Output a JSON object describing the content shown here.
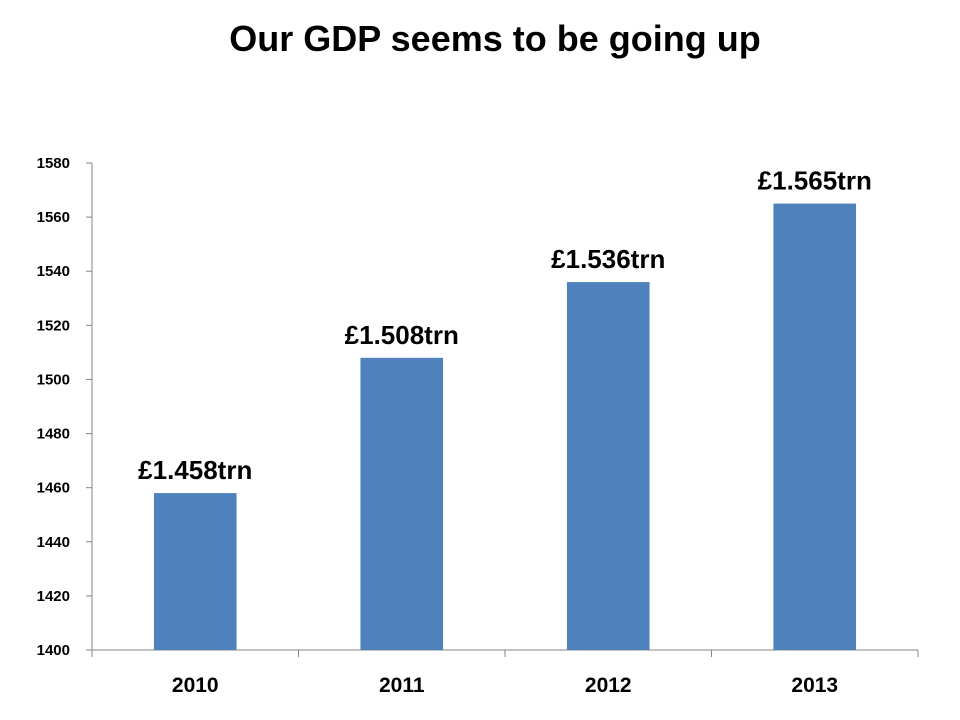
{
  "chart_data": {
    "type": "bar",
    "title": "Our GDP seems to be going up",
    "xlabel": "",
    "ylabel": "",
    "categories": [
      "2010",
      "2011",
      "2012",
      "2013"
    ],
    "values": [
      1458,
      1508,
      1536,
      1565
    ],
    "data_labels": [
      "£1.458trn",
      "£1.508trn",
      "£1.536trn",
      "£1.565trn"
    ],
    "ylim": [
      1400,
      1580
    ],
    "y_ticks": [
      "1400",
      "1420",
      "1440",
      "1460",
      "1480",
      "1500",
      "1520",
      "1540",
      "1560",
      "1580"
    ],
    "grid": false,
    "legend": "none",
    "bar_color": "#4F81BD"
  }
}
